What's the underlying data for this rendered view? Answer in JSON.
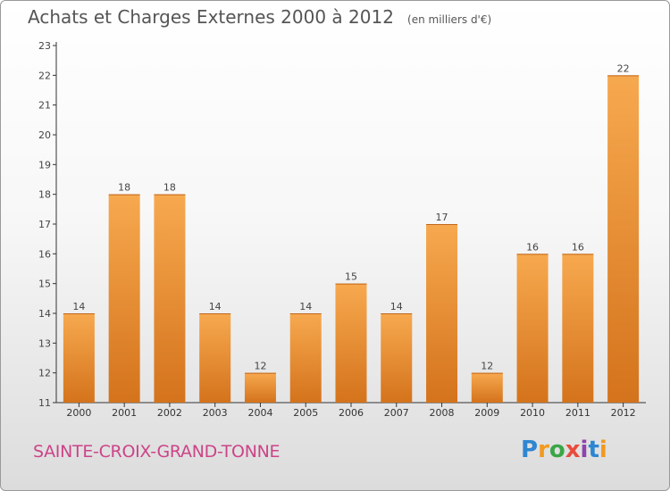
{
  "header": {
    "title": "Achats et Charges Externes 2000 à 2012",
    "subtitle": "(en milliers d'€)"
  },
  "footer": {
    "commune": "SAINTE-CROIX-GRAND-TONNE",
    "logo_text": "Proxiti",
    "logo_letters": [
      "P",
      "r",
      "o",
      "x",
      "i",
      "t",
      "i"
    ]
  },
  "colors": {
    "bar_top": "#f7a94f",
    "bar_bottom": "#d4731c",
    "title": "#555555",
    "commune": "#cc4488",
    "axis": "#333333"
  },
  "chart_data": {
    "type": "bar",
    "title": "Achats et Charges Externes 2000 à 2012",
    "subtitle": "(en milliers d'€)",
    "xlabel": "",
    "ylabel": "",
    "categories": [
      "2000",
      "2001",
      "2002",
      "2003",
      "2004",
      "2005",
      "2006",
      "2007",
      "2008",
      "2009",
      "2010",
      "2011",
      "2012"
    ],
    "values": [
      14,
      18,
      18,
      14,
      12,
      14,
      15,
      14,
      17,
      12,
      16,
      16,
      22
    ],
    "ylim": [
      11,
      23
    ],
    "yticks": [
      11,
      12,
      13,
      14,
      15,
      16,
      17,
      18,
      19,
      20,
      21,
      22,
      23
    ],
    "grid": false,
    "legend": "none",
    "data_labels": true
  }
}
